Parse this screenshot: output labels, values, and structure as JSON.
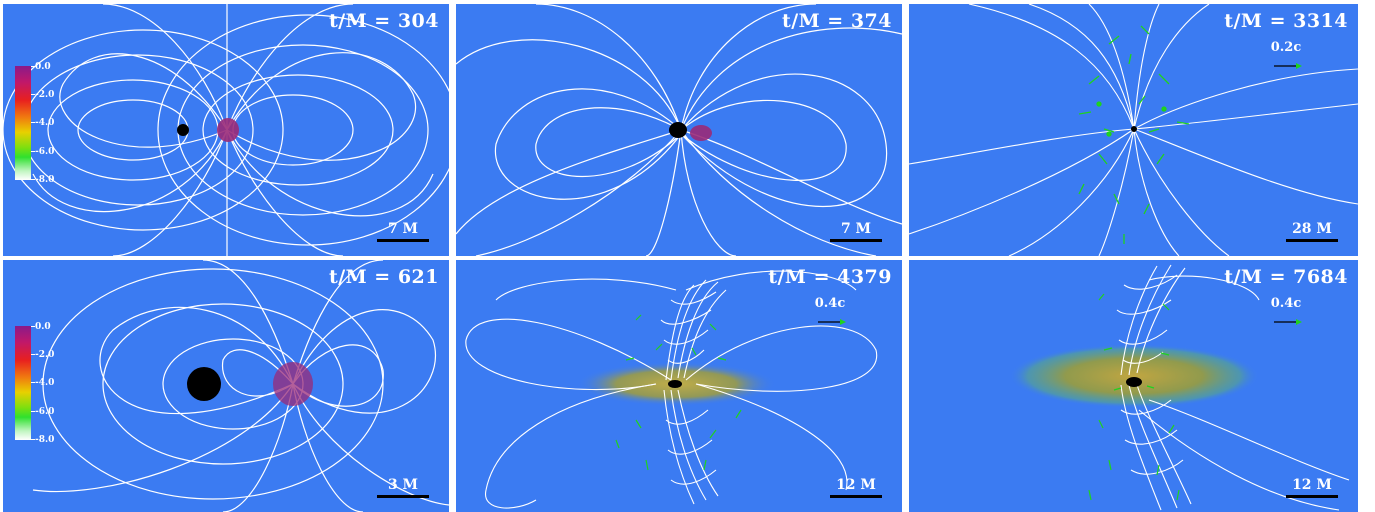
{
  "panels": [
    {
      "time": "t/M = 304",
      "scale": "7 M",
      "velocity": "",
      "colorbar": [
        "0.0",
        "-2.0",
        "-4.0",
        "-6.0",
        "-8.0"
      ]
    },
    {
      "time": "t/M = 374",
      "scale": "7 M",
      "velocity": ""
    },
    {
      "time": "t/M = 3314",
      "scale": "28 M",
      "velocity": "0.2c"
    },
    {
      "time": "t/M = 621",
      "scale": "3 M",
      "velocity": "",
      "colorbar": [
        "0.0",
        "-2.0",
        "-4.0",
        "-6.0",
        "-8.0"
      ]
    },
    {
      "time": "t/M = 4379",
      "scale": "12 M",
      "velocity": "0.4c"
    },
    {
      "time": "t/M = 7684",
      "scale": "12 M",
      "velocity": "0.4c"
    }
  ],
  "colors": {
    "background": "#3b7bf2",
    "field_lines": "#ffffff",
    "arrows": "#1fd21f",
    "black_hole": "#000000",
    "neutron_star": "#9a2a78",
    "disk": "#b8b040"
  }
}
